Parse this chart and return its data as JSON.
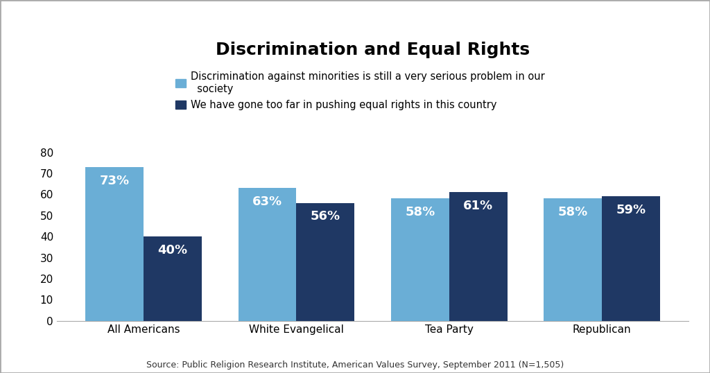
{
  "title": "Discrimination and Equal Rights",
  "categories": [
    "All Americans",
    "White Evangelical",
    "Tea Party",
    "Republican"
  ],
  "series1_label": "Discrimination against minorities is still a very serious problem in our\n  society",
  "series2_label": "We have gone too far in pushing equal rights in this country",
  "series1_values": [
    73,
    63,
    58,
    58
  ],
  "series2_values": [
    40,
    56,
    61,
    59
  ],
  "series1_color": "#6aaed6",
  "series2_color": "#1f3864",
  "bar_width": 0.38,
  "ylim": [
    0,
    85
  ],
  "yticks": [
    0,
    10,
    20,
    30,
    40,
    50,
    60,
    70,
    80
  ],
  "source_text": "Source: Public Religion Research Institute, American Values Survey, September 2011 (N=1,505)",
  "title_fontsize": 18,
  "tick_fontsize": 11,
  "annotation_fontsize": 13,
  "source_fontsize": 9,
  "background_color": "#ffffff",
  "figure_bg": "#e8e8e8",
  "legend_fontsize": 10.5
}
